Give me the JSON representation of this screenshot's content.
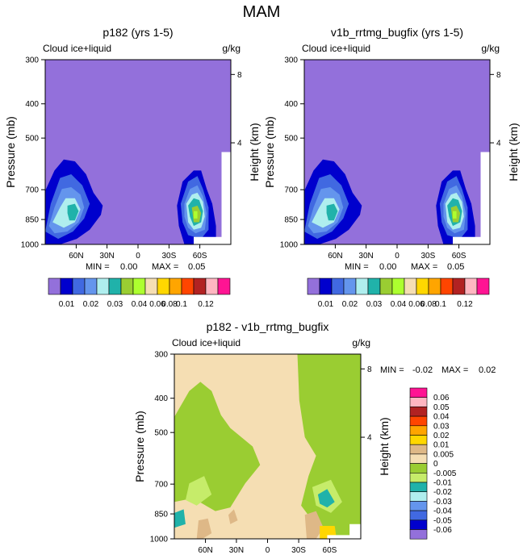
{
  "page_title": "MAM",
  "colors": {
    "background_fill": "#9370DB",
    "frame": "#000000",
    "diff_zero": "#F5DEB3"
  },
  "chart_data": [
    {
      "type": "heatmap",
      "title": "p182 (yrs 1-5)",
      "subtitle_left": "Cloud ice+liquid",
      "subtitle_right": "g/kg",
      "ylabel": "Pressure (mb)",
      "ylabel_right": "Height (km)",
      "xticks": [
        "60N",
        "30N",
        "0",
        "30S",
        "60S"
      ],
      "yticks": [
        "300",
        "400",
        "500",
        "700",
        "850",
        "1000"
      ],
      "yticks_right": [
        "8",
        "4"
      ],
      "ylim": [
        300,
        1000
      ],
      "stats": {
        "min_label": "MIN =",
        "min": "0.00",
        "max_label": "MAX =",
        "max": "0.05"
      },
      "levels": [
        "0.01",
        "0.02",
        "0.03",
        "0.04",
        "0.06",
        "0.08",
        "0.1",
        "0.12"
      ],
      "palette": [
        "#9370DB",
        "#0000CD",
        "#4169E1",
        "#6495ED",
        "#AFEEEE",
        "#20B2AA",
        "#9ACD32",
        "#ADFF2F",
        "#F5DEB3",
        "#FFD700",
        "#FFA500",
        "#FF4500",
        "#B22222",
        "#FFB6C1",
        "#FF1493"
      ]
    },
    {
      "type": "heatmap",
      "title": "v1b_rrtmg_bugfix (yrs 1-5)",
      "subtitle_left": "Cloud ice+liquid",
      "subtitle_right": "g/kg",
      "ylabel": "Pressure (mb)",
      "ylabel_right": "Height (km)",
      "xticks": [
        "60N",
        "30N",
        "0",
        "30S",
        "60S"
      ],
      "yticks": [
        "300",
        "400",
        "500",
        "700",
        "850",
        "1000"
      ],
      "yticks_right": [
        "8",
        "4"
      ],
      "ylim": [
        300,
        1000
      ],
      "stats": {
        "min_label": "MIN =",
        "min": "0.00",
        "max_label": "MAX =",
        "max": "0.05"
      },
      "levels": [
        "0.01",
        "0.02",
        "0.03",
        "0.04",
        "0.06",
        "0.08",
        "0.1",
        "0.12"
      ],
      "palette": [
        "#9370DB",
        "#0000CD",
        "#4169E1",
        "#6495ED",
        "#AFEEEE",
        "#20B2AA",
        "#9ACD32",
        "#ADFF2F",
        "#F5DEB3",
        "#FFD700",
        "#FFA500",
        "#FF4500",
        "#B22222",
        "#FFB6C1",
        "#FF1493"
      ]
    },
    {
      "type": "heatmap",
      "title": "p182 - v1b_rrtmg_bugfix",
      "subtitle_left": "Cloud ice+liquid",
      "subtitle_right": "g/kg",
      "ylabel": "Pressure (mb)",
      "ylabel_right": "Height (km)",
      "xticks": [
        "60N",
        "30N",
        "0",
        "30S",
        "60S"
      ],
      "yticks": [
        "300",
        "400",
        "500",
        "700",
        "850",
        "1000"
      ],
      "yticks_right": [
        "8",
        "4"
      ],
      "ylim": [
        300,
        1000
      ],
      "stats": {
        "min_label": "MIN =",
        "min": "-0.02",
        "max_label": "MAX =",
        "max": "0.02"
      },
      "levels": [
        "0.06",
        "0.05",
        "0.04",
        "0.03",
        "0.02",
        "0.01",
        "0.005",
        "0",
        "-0.005",
        "-0.01",
        "-0.02",
        "-0.03",
        "-0.04",
        "-0.05",
        "-0.06"
      ],
      "palette": [
        "#FF1493",
        "#FFB6C1",
        "#B22222",
        "#FF4500",
        "#FFA500",
        "#FFD700",
        "#DEB887",
        "#F5DEB3",
        "#9ACD32",
        "#C6EC6A",
        "#20B2AA",
        "#AFEEEE",
        "#6495ED",
        "#4169E1",
        "#0000CD",
        "#9370DB"
      ]
    }
  ]
}
